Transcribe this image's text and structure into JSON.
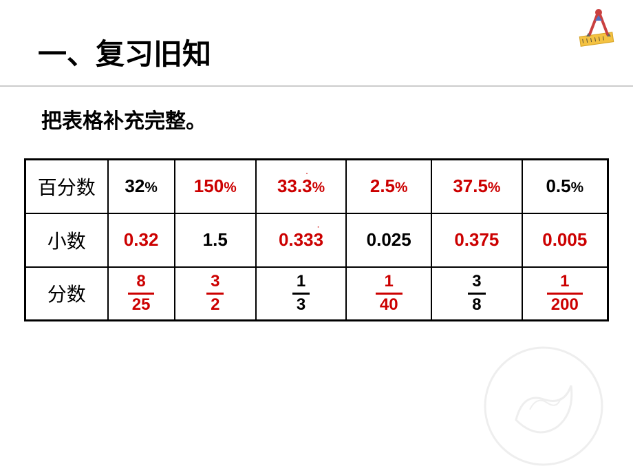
{
  "title": "一、复习旧知",
  "subtitle": "把表格补充完整。",
  "table": {
    "rows": [
      {
        "header": "百分数",
        "cells": [
          {
            "value": "32%",
            "color": "black"
          },
          {
            "value": "150%",
            "color": "red"
          },
          {
            "value": "33.3%",
            "color": "red",
            "periodic": true
          },
          {
            "value": "2.5%",
            "color": "red"
          },
          {
            "value": "37.5%",
            "color": "red"
          },
          {
            "value": "0.5%",
            "color": "black"
          }
        ]
      },
      {
        "header": "小数",
        "cells": [
          {
            "value": "0.32",
            "color": "red"
          },
          {
            "value": "1.5",
            "color": "black"
          },
          {
            "value": "0.333",
            "color": "red",
            "periodic": true
          },
          {
            "value": "0.025",
            "color": "black"
          },
          {
            "value": "0.375",
            "color": "red"
          },
          {
            "value": "0.005",
            "color": "red"
          }
        ]
      },
      {
        "header": "分数",
        "cells": [
          {
            "numerator": "8",
            "denominator": "25",
            "color": "red",
            "type": "fraction"
          },
          {
            "numerator": "3",
            "denominator": "2",
            "color": "red",
            "type": "fraction"
          },
          {
            "numerator": "1",
            "denominator": "3",
            "color": "black",
            "type": "fraction"
          },
          {
            "numerator": "1",
            "denominator": "40",
            "color": "red",
            "type": "fraction"
          },
          {
            "numerator": "3",
            "denominator": "8",
            "color": "black",
            "type": "fraction"
          },
          {
            "numerator": "1",
            "denominator": "200",
            "color": "red",
            "type": "fraction"
          }
        ]
      }
    ]
  },
  "colors": {
    "black": "#000000",
    "red": "#cc0000",
    "divider": "#cccccc",
    "background": "#ffffff"
  }
}
